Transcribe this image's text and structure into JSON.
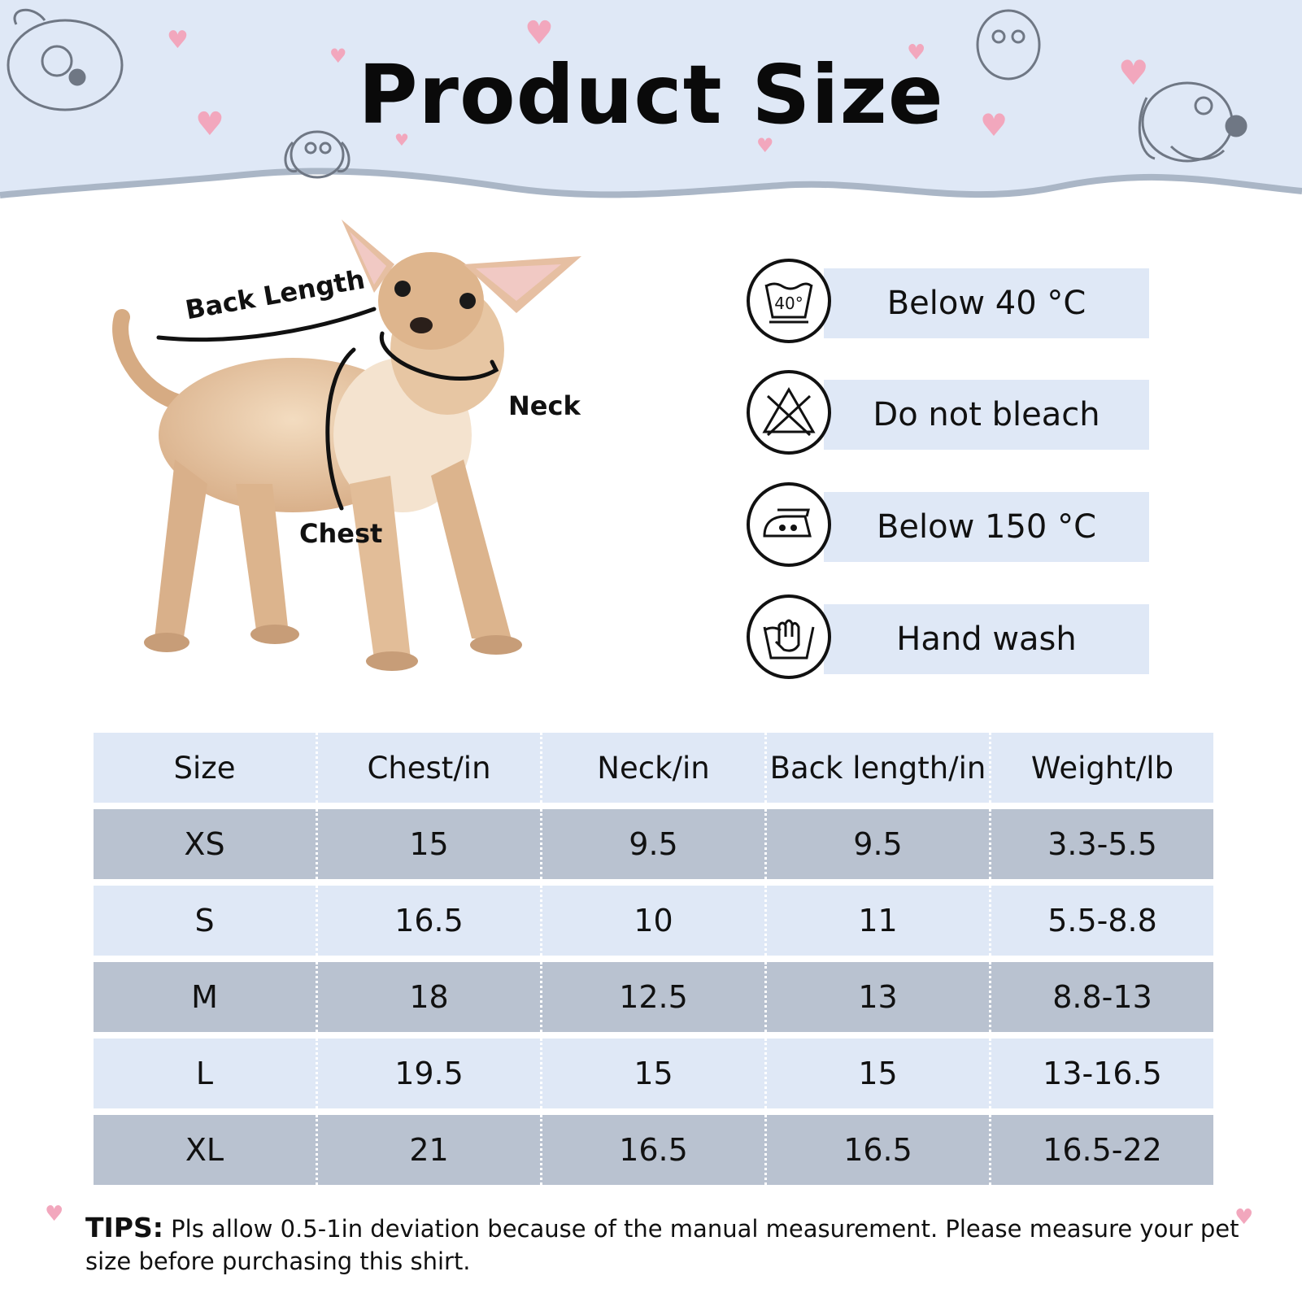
{
  "header": {
    "title": "Product Size"
  },
  "diagram_labels": {
    "back_length": "Back Length",
    "neck": "Neck",
    "chest": "Chest"
  },
  "care": [
    {
      "icon": "wash-40-icon",
      "label": "Below 40 °C"
    },
    {
      "icon": "no-bleach-icon",
      "label": "Do not bleach"
    },
    {
      "icon": "iron-icon",
      "label": "Below 150 °C"
    },
    {
      "icon": "hand-wash-icon",
      "label": "Hand wash"
    }
  ],
  "table": {
    "headers": [
      "Size",
      "Chest/in",
      "Neck/in",
      "Back length/in",
      "Weight/lb"
    ],
    "rows": [
      [
        "XS",
        "15",
        "9.5",
        "9.5",
        "3.3-5.5"
      ],
      [
        "S",
        "16.5",
        "10",
        "11",
        "5.5-8.8"
      ],
      [
        "M",
        "18",
        "12.5",
        "13",
        "8.8-13"
      ],
      [
        "L",
        "19.5",
        "15",
        "15",
        "13-16.5"
      ],
      [
        "XL",
        "21",
        "16.5",
        "16.5",
        "16.5-22"
      ]
    ]
  },
  "tips": {
    "label": "TIPS:",
    "text": "Pls allow 0.5-1in deviation because of the manual measurement. Please measure your pet size before purchasing this shirt."
  },
  "colors": {
    "header_bg": "#dfe8f6",
    "row_light": "#dfe8f6",
    "row_dark": "#b9c2d0",
    "heart": "#f2a7bd"
  }
}
